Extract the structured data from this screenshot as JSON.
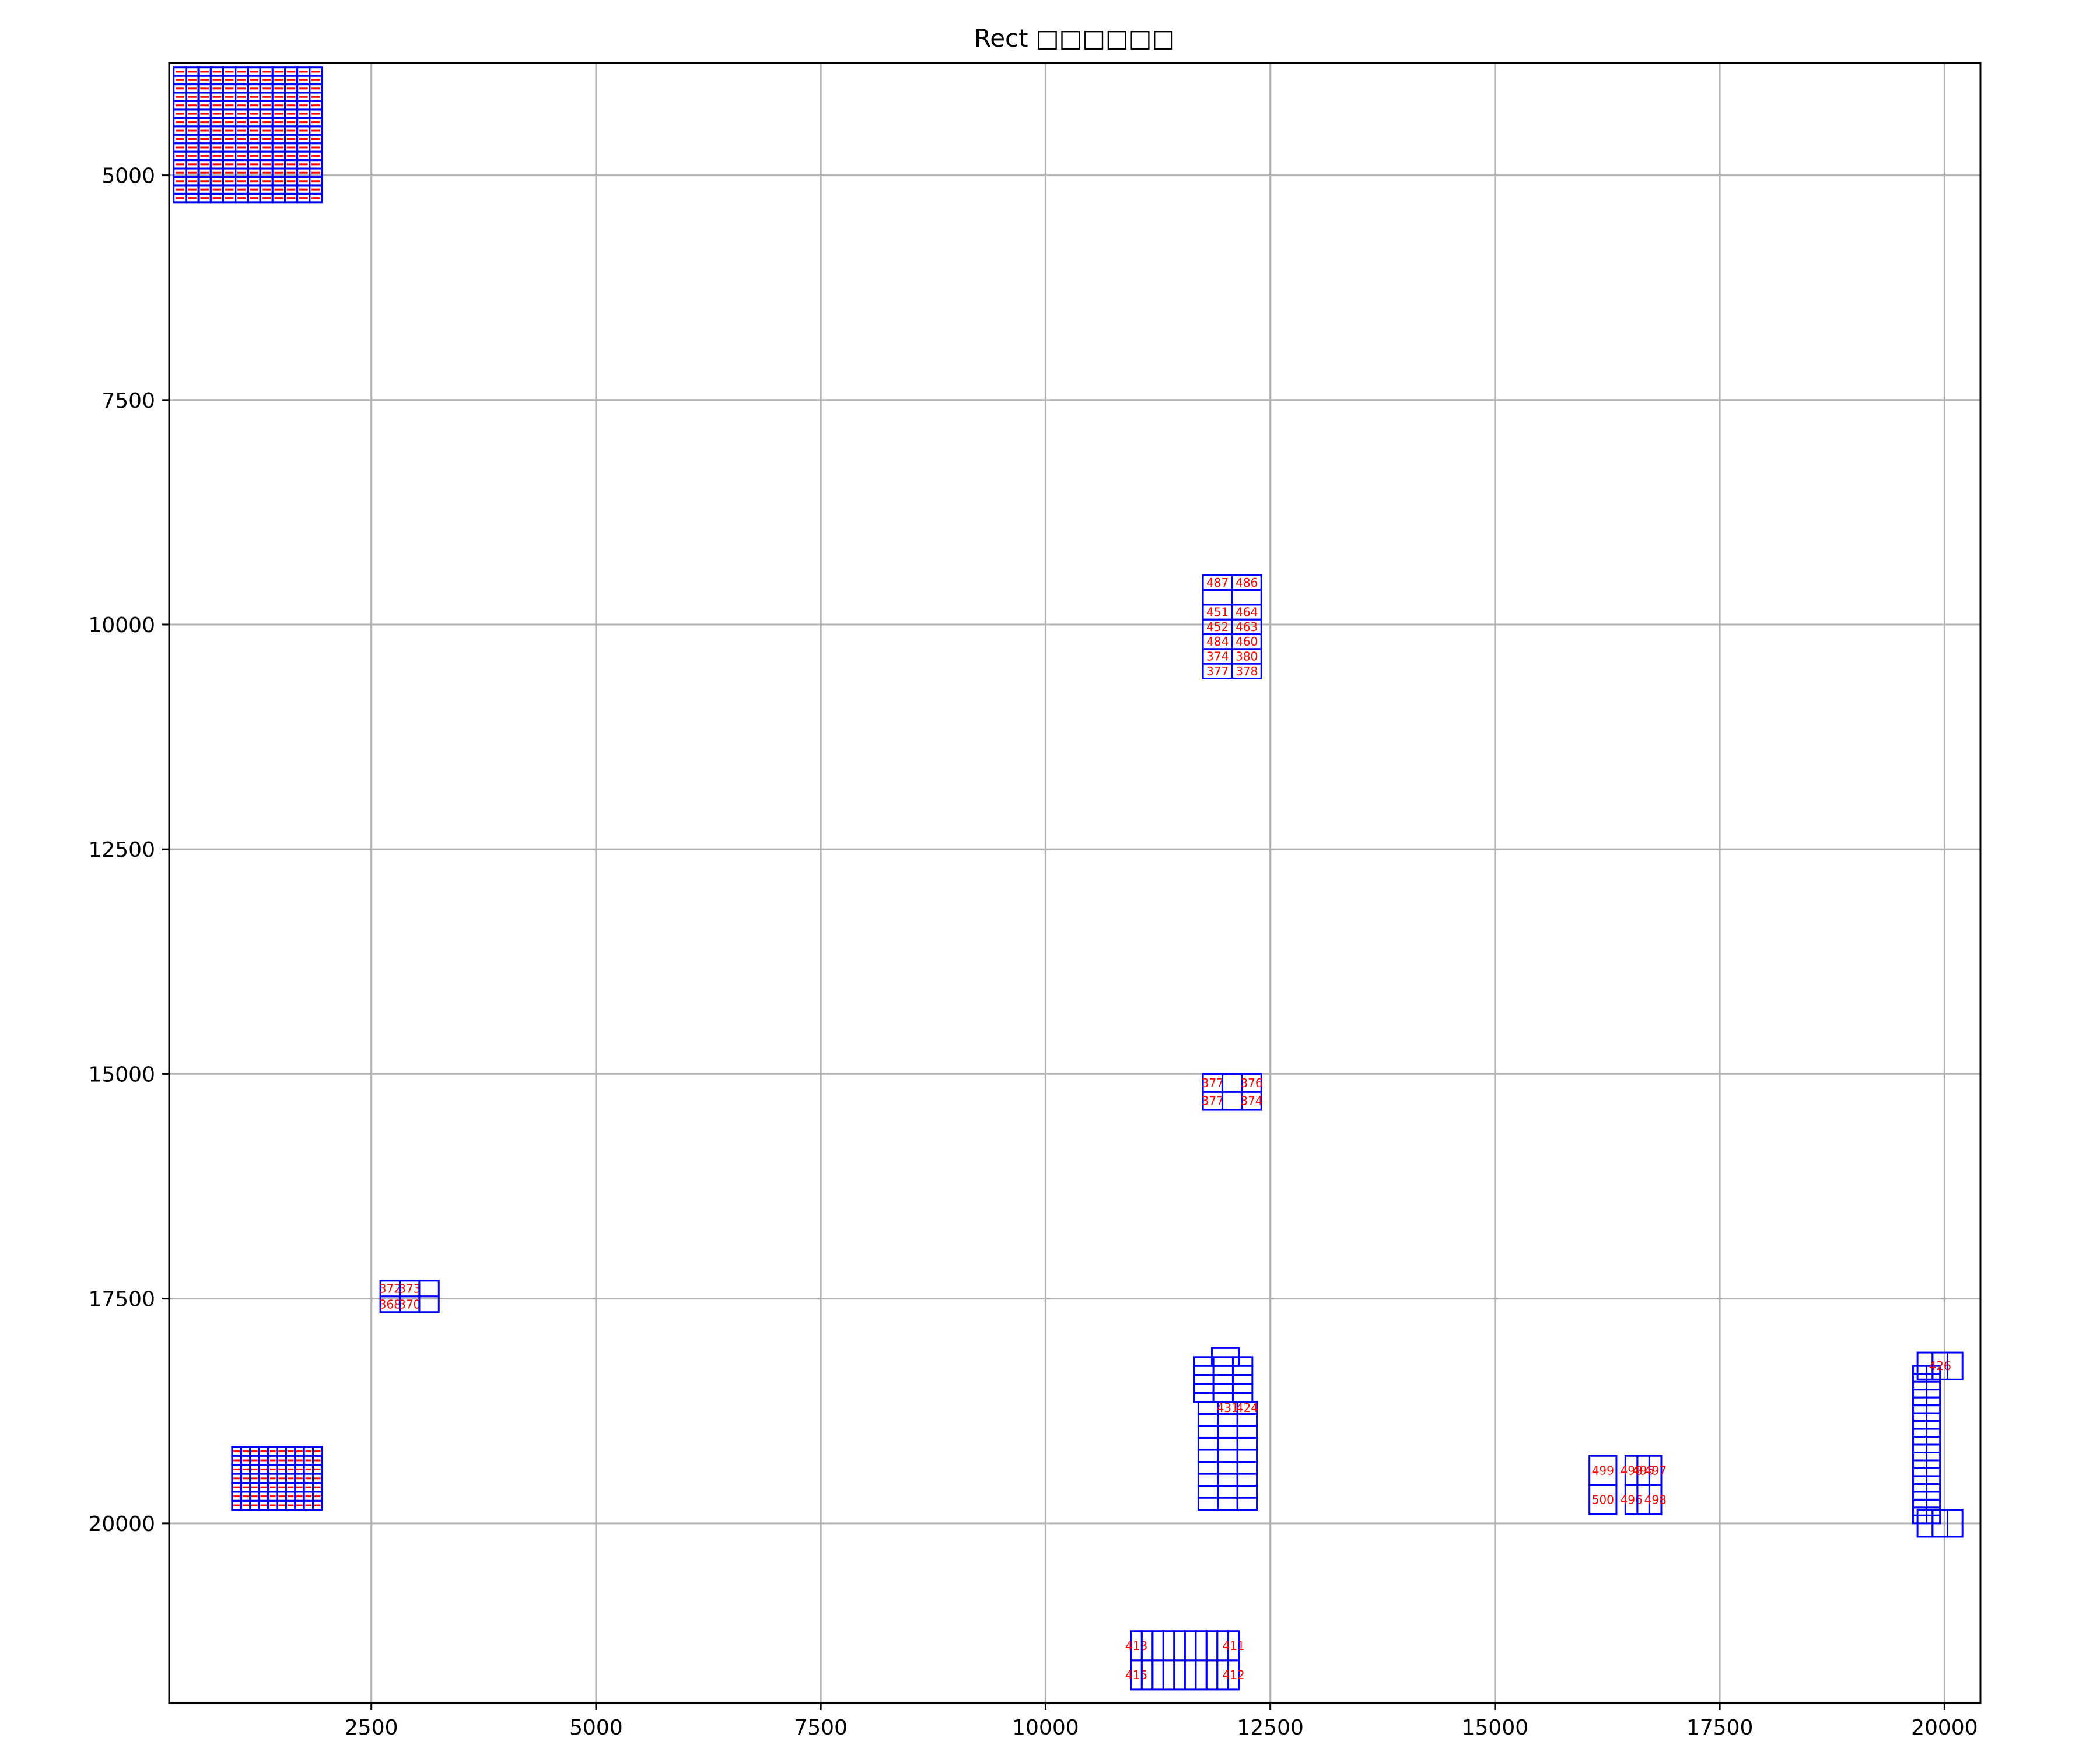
{
  "chart_data": {
    "type": "scatter",
    "title": "Rect □□□□□□",
    "xlabel": "",
    "ylabel": "",
    "xlim": [
      250,
      20400
    ],
    "ylim": [
      22000,
      3750
    ],
    "y_inverted": true,
    "grid": true,
    "xticks": [
      2500,
      5000,
      7500,
      10000,
      12500,
      15000,
      17500,
      20000
    ],
    "yticks": [
      5000,
      7500,
      10000,
      12500,
      15000,
      17500,
      20000
    ],
    "colors": {
      "rect_edge": "#0000ff",
      "label_text": "#ff0000",
      "grid": "#b0b0b0",
      "axes": "#000000"
    },
    "groups": [
      {
        "name": "block-top-left",
        "x0": 300,
        "y0": 3800,
        "x1": 1950,
        "y1": 5300,
        "cols": 12,
        "rows": 16,
        "labels": []
      },
      {
        "name": "block-bottom-left",
        "x0": 950,
        "y0": 19150,
        "x1": 1950,
        "y1": 19850,
        "cols": 10,
        "rows": 7,
        "labels": []
      },
      {
        "name": "pair-17500",
        "x0": 2600,
        "y0": 17300,
        "x1": 3250,
        "y1": 17650,
        "cols": 3,
        "rows": 2,
        "labels": [
          "372",
          "373",
          "",
          "368",
          "370",
          ""
        ]
      },
      {
        "name": "stack-10000",
        "x0": 11750,
        "y0": 9450,
        "x1": 12400,
        "y1": 10600,
        "cols": 2,
        "rows": 7,
        "labels": [
          "487",
          "486",
          "",
          "",
          "451",
          "464",
          "452",
          "463",
          "484",
          "460",
          "374",
          "380",
          "377",
          "378"
        ]
      },
      {
        "name": "pair-15200",
        "x0": 11750,
        "y0": 15000,
        "x1": 12400,
        "y1": 15400,
        "cols": 3,
        "rows": 2,
        "labels": [
          "377",
          "",
          "376",
          "377",
          "",
          "374"
        ]
      },
      {
        "name": "stack-18400",
        "x0": 11650,
        "y0": 18150,
        "x1": 12300,
        "y1": 18650,
        "cols": 3,
        "rows": 5,
        "labels": []
      },
      {
        "name": "stack-19300",
        "x0": 11700,
        "y0": 18650,
        "x1": 12350,
        "y1": 19850,
        "cols": 3,
        "rows": 9,
        "labels": [
          "",
          "431",
          "424"
        ]
      },
      {
        "name": "row-21500",
        "x0": 10950,
        "y0": 21200,
        "x1": 12150,
        "y1": 21850,
        "cols": 10,
        "rows": 2,
        "labels": [
          "413",
          "",
          "",
          "",
          "",
          "",
          "",
          "",
          "",
          "411",
          "415",
          "",
          "",
          "",
          "",
          "",
          "",
          "",
          "",
          "412"
        ]
      },
      {
        "name": "pair-16200",
        "x0": 16050,
        "y0": 19250,
        "x1": 16350,
        "y1": 19900,
        "cols": 1,
        "rows": 2,
        "labels": [
          "499",
          "500"
        ]
      },
      {
        "name": "pair-16600",
        "x0": 16450,
        "y0": 19250,
        "x1": 16850,
        "y1": 19900,
        "cols": 3,
        "rows": 2,
        "labels": [
          "498",
          "495",
          "497",
          "496",
          "",
          "498"
        ]
      },
      {
        "name": "column-19800",
        "x0": 19650,
        "y0": 18250,
        "x1": 19950,
        "y1": 20000,
        "cols": 2,
        "rows": 20,
        "labels": []
      },
      {
        "name": "tab-18300",
        "x0": 19700,
        "y0": 18100,
        "x1": 20200,
        "y1": 18400,
        "cols": 3,
        "rows": 1,
        "labels": [
          "",
          "426",
          ""
        ]
      },
      {
        "name": "tab-20000",
        "x0": 19700,
        "y0": 19850,
        "x1": 20200,
        "y1": 20150,
        "cols": 3,
        "rows": 1,
        "labels": [
          "",
          "",
          ""
        ]
      },
      {
        "name": "tiny-18100",
        "x0": 11850,
        "y0": 18050,
        "x1": 12150,
        "y1": 18250,
        "cols": 1,
        "rows": 1,
        "labels": []
      }
    ]
  }
}
